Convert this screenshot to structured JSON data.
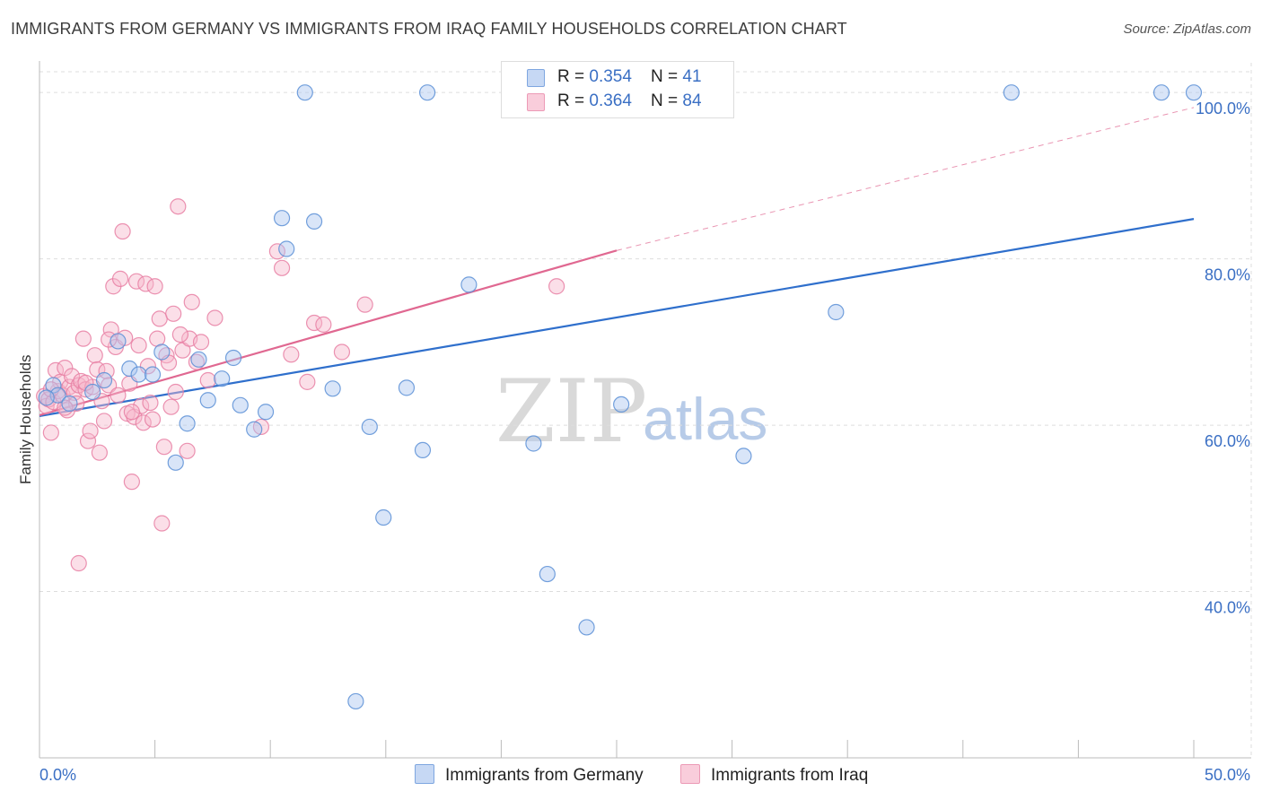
{
  "title": "IMMIGRANTS FROM GERMANY VS IMMIGRANTS FROM IRAQ FAMILY HOUSEHOLDS CORRELATION CHART",
  "source": "Source: ZipAtlas.com",
  "watermark": {
    "zip": "ZIP",
    "atlas": "atlas"
  },
  "colors": {
    "germany_fill": "#aac6ef",
    "germany_stroke": "#5b8fd6",
    "germany_line": "#2f6fcc",
    "iraq_fill": "#f6b8cc",
    "iraq_stroke": "#e77fa3",
    "iraq_line": "#e06891",
    "tick": "#3a6fc4",
    "grid": "#dddddd"
  },
  "legend": {
    "germany": {
      "r_label": "R = ",
      "r_value": "0.354",
      "n_label": "N = ",
      "n_value": "41"
    },
    "iraq": {
      "r_label": "R = ",
      "r_value": "0.364",
      "n_label": "N = ",
      "n_value": "84"
    }
  },
  "chart_data": {
    "type": "scatter",
    "title": "IMMIGRANTS FROM GERMANY VS IMMIGRANTS FROM IRAQ FAMILY HOUSEHOLDS CORRELATION CHART",
    "xlabel": "",
    "ylabel": "Family Households",
    "xlim": [
      0,
      50
    ],
    "ylim": [
      20,
      102.5
    ],
    "x_tick_labels": [
      "0.0%",
      "50.0%"
    ],
    "y_ticks": [
      40,
      60,
      80,
      100
    ],
    "y_tick_labels": [
      "40.0%",
      "60.0%",
      "80.0%",
      "100.0%"
    ],
    "grid": true,
    "legend_position": "top-center",
    "series": [
      {
        "name": "Immigrants from Germany",
        "color": "#aac6ef",
        "trend": {
          "x": [
            0,
            50
          ],
          "y": [
            61.1,
            84.8
          ],
          "dashed": false
        },
        "points": [
          {
            "x": 0.6,
            "y": 64.8
          },
          {
            "x": 0.8,
            "y": 63.6
          },
          {
            "x": 1.3,
            "y": 62.6
          },
          {
            "x": 2.3,
            "y": 64.0
          },
          {
            "x": 2.8,
            "y": 65.4
          },
          {
            "x": 3.4,
            "y": 70.1
          },
          {
            "x": 3.9,
            "y": 66.8
          },
          {
            "x": 4.3,
            "y": 66.1
          },
          {
            "x": 4.9,
            "y": 66.1
          },
          {
            "x": 5.3,
            "y": 68.8
          },
          {
            "x": 5.9,
            "y": 55.5
          },
          {
            "x": 6.4,
            "y": 60.2
          },
          {
            "x": 6.9,
            "y": 67.9
          },
          {
            "x": 7.3,
            "y": 63.0
          },
          {
            "x": 7.9,
            "y": 65.6
          },
          {
            "x": 8.4,
            "y": 68.1
          },
          {
            "x": 8.7,
            "y": 62.4
          },
          {
            "x": 9.3,
            "y": 59.5
          },
          {
            "x": 9.8,
            "y": 61.6
          },
          {
            "x": 10.5,
            "y": 84.9
          },
          {
            "x": 10.7,
            "y": 81.2
          },
          {
            "x": 11.5,
            "y": 100.0
          },
          {
            "x": 11.9,
            "y": 84.5
          },
          {
            "x": 12.7,
            "y": 64.4
          },
          {
            "x": 13.7,
            "y": 26.8
          },
          {
            "x": 14.3,
            "y": 59.8
          },
          {
            "x": 14.9,
            "y": 48.9
          },
          {
            "x": 15.9,
            "y": 64.5
          },
          {
            "x": 16.6,
            "y": 57.0
          },
          {
            "x": 16.8,
            "y": 100.0
          },
          {
            "x": 18.6,
            "y": 76.9
          },
          {
            "x": 21.4,
            "y": 57.8
          },
          {
            "x": 22.0,
            "y": 42.1
          },
          {
            "x": 23.7,
            "y": 35.7
          },
          {
            "x": 25.2,
            "y": 62.5
          },
          {
            "x": 30.5,
            "y": 56.3
          },
          {
            "x": 34.5,
            "y": 73.6
          },
          {
            "x": 42.1,
            "y": 100.0
          },
          {
            "x": 50.0,
            "y": 100.0
          },
          {
            "x": 48.6,
            "y": 100.0
          },
          {
            "x": 0.3,
            "y": 63.3
          }
        ]
      },
      {
        "name": "Immigrants from Iraq",
        "color": "#f6b8cc",
        "trend": {
          "x": [
            0,
            25
          ],
          "y": [
            61.2,
            81.0
          ],
          "dashed": false
        },
        "trend_extension": {
          "x": [
            25,
            50
          ],
          "y": [
            81.0,
            98.2
          ],
          "dashed": true
        },
        "points": [
          {
            "x": 0.2,
            "y": 63.5
          },
          {
            "x": 0.3,
            "y": 62.3
          },
          {
            "x": 0.4,
            "y": 63.1
          },
          {
            "x": 0.5,
            "y": 59.1
          },
          {
            "x": 0.6,
            "y": 62.8
          },
          {
            "x": 0.7,
            "y": 66.6
          },
          {
            "x": 0.8,
            "y": 64.1
          },
          {
            "x": 0.9,
            "y": 65.2
          },
          {
            "x": 1.0,
            "y": 63.6
          },
          {
            "x": 1.1,
            "y": 66.9
          },
          {
            "x": 1.2,
            "y": 61.8
          },
          {
            "x": 1.3,
            "y": 64.6
          },
          {
            "x": 1.4,
            "y": 65.9
          },
          {
            "x": 1.5,
            "y": 63.9
          },
          {
            "x": 1.6,
            "y": 62.6
          },
          {
            "x": 1.7,
            "y": 64.8
          },
          {
            "x": 1.8,
            "y": 65.3
          },
          {
            "x": 1.9,
            "y": 70.4
          },
          {
            "x": 2.0,
            "y": 64.3
          },
          {
            "x": 2.1,
            "y": 58.1
          },
          {
            "x": 1.7,
            "y": 43.4
          },
          {
            "x": 2.2,
            "y": 59.3
          },
          {
            "x": 2.3,
            "y": 64.6
          },
          {
            "x": 2.4,
            "y": 68.4
          },
          {
            "x": 2.5,
            "y": 66.7
          },
          {
            "x": 2.6,
            "y": 56.7
          },
          {
            "x": 2.7,
            "y": 62.9
          },
          {
            "x": 2.8,
            "y": 60.5
          },
          {
            "x": 2.9,
            "y": 66.5
          },
          {
            "x": 3.0,
            "y": 64.8
          },
          {
            "x": 3.1,
            "y": 71.5
          },
          {
            "x": 3.2,
            "y": 76.7
          },
          {
            "x": 3.3,
            "y": 69.4
          },
          {
            "x": 3.4,
            "y": 63.6
          },
          {
            "x": 3.5,
            "y": 77.6
          },
          {
            "x": 3.6,
            "y": 83.3
          },
          {
            "x": 3.7,
            "y": 70.5
          },
          {
            "x": 3.8,
            "y": 61.4
          },
          {
            "x": 3.9,
            "y": 65.0
          },
          {
            "x": 4.0,
            "y": 53.2
          },
          {
            "x": 4.1,
            "y": 61.0
          },
          {
            "x": 4.2,
            "y": 77.3
          },
          {
            "x": 4.3,
            "y": 69.6
          },
          {
            "x": 4.4,
            "y": 62.3
          },
          {
            "x": 4.5,
            "y": 60.3
          },
          {
            "x": 4.6,
            "y": 77.0
          },
          {
            "x": 4.7,
            "y": 67.1
          },
          {
            "x": 4.8,
            "y": 62.7
          },
          {
            "x": 4.9,
            "y": 60.7
          },
          {
            "x": 5.0,
            "y": 76.7
          },
          {
            "x": 5.1,
            "y": 70.4
          },
          {
            "x": 5.2,
            "y": 72.8
          },
          {
            "x": 5.3,
            "y": 48.2
          },
          {
            "x": 5.4,
            "y": 57.4
          },
          {
            "x": 5.5,
            "y": 68.4
          },
          {
            "x": 5.6,
            "y": 67.5
          },
          {
            "x": 5.7,
            "y": 62.2
          },
          {
            "x": 5.8,
            "y": 73.4
          },
          {
            "x": 5.9,
            "y": 64.0
          },
          {
            "x": 6.0,
            "y": 86.3
          },
          {
            "x": 6.2,
            "y": 69.0
          },
          {
            "x": 6.4,
            "y": 56.9
          },
          {
            "x": 6.5,
            "y": 70.4
          },
          {
            "x": 6.6,
            "y": 74.8
          },
          {
            "x": 6.8,
            "y": 67.6
          },
          {
            "x": 7.0,
            "y": 70.0
          },
          {
            "x": 7.3,
            "y": 65.4
          },
          {
            "x": 7.6,
            "y": 72.9
          },
          {
            "x": 9.6,
            "y": 59.8
          },
          {
            "x": 10.3,
            "y": 80.9
          },
          {
            "x": 10.5,
            "y": 78.9
          },
          {
            "x": 10.9,
            "y": 68.5
          },
          {
            "x": 11.6,
            "y": 65.2
          },
          {
            "x": 11.9,
            "y": 72.3
          },
          {
            "x": 12.3,
            "y": 72.1
          },
          {
            "x": 13.1,
            "y": 68.8
          },
          {
            "x": 14.1,
            "y": 74.5
          },
          {
            "x": 22.4,
            "y": 76.7
          },
          {
            "x": 0.5,
            "y": 64.3
          },
          {
            "x": 1.1,
            "y": 62.1
          },
          {
            "x": 2.0,
            "y": 65.1
          },
          {
            "x": 3.0,
            "y": 70.3
          },
          {
            "x": 4.0,
            "y": 61.6
          },
          {
            "x": 6.1,
            "y": 70.9
          }
        ]
      }
    ]
  },
  "bottom_legend": {
    "germany": "Immigrants from Germany",
    "iraq": "Immigrants from Iraq"
  }
}
